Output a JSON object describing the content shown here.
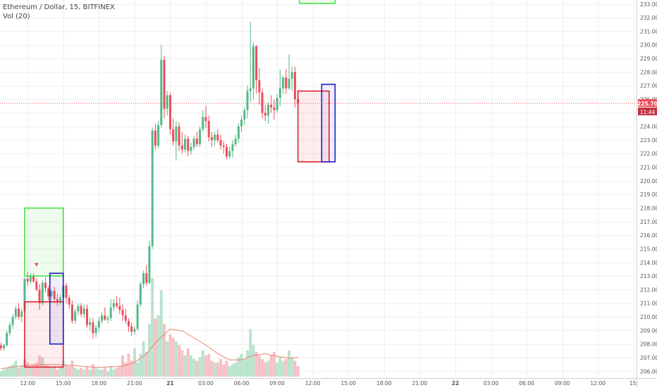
{
  "header": {
    "symbol_line": "Ethereum / Dollar, 15, BITFINEX",
    "volume_indicator": "Vol (20)"
  },
  "price_badge": {
    "price": "225.70",
    "countdown": "11:44"
  },
  "colors": {
    "up": "#53b987",
    "down": "#eb4d5c",
    "vol_up": "#b9e3cd",
    "vol_down": "#f5c1c6",
    "vol_ma": "#f08070",
    "price_line": "#eb4d5c",
    "grid": "#f0f0f0",
    "axis_text": "#555555",
    "zone_green": "#4cdf4c",
    "zone_red": "#e02030",
    "zone_blue": "#2020c0"
  },
  "chart_data": {
    "type": "candlestick",
    "title": "Ethereum / Dollar, 15, BITFINEX",
    "y_axis_ticks": [
      "206.00",
      "207.00",
      "208.00",
      "209.00",
      "210.00",
      "211.00",
      "212.00",
      "213.00",
      "214.00",
      "215.00",
      "216.00",
      "217.00",
      "218.00",
      "219.00",
      "220.00",
      "221.00",
      "222.00",
      "223.00",
      "224.00",
      "225.00",
      "226.00",
      "227.00",
      "228.00",
      "229.00",
      "230.00",
      "231.00",
      "232.00",
      "233.00"
    ],
    "ylim": [
      205.6,
      233.3
    ],
    "x_axis_ticks": [
      {
        "label": "12:00",
        "t": 0
      },
      {
        "label": "15:00",
        "t": 12
      },
      {
        "label": "18:00",
        "t": 24
      },
      {
        "label": "21:00",
        "t": 36
      },
      {
        "label": "21",
        "t": 48,
        "bold": true
      },
      {
        "label": "03:00",
        "t": 60
      },
      {
        "label": "06:00",
        "t": 72
      },
      {
        "label": "09:00",
        "t": 84
      },
      {
        "label": "12:00",
        "t": 96
      },
      {
        "label": "15:00",
        "t": 108
      },
      {
        "label": "18:00",
        "t": 120
      },
      {
        "label": "21:00",
        "t": 132
      },
      {
        "label": "22",
        "t": 144,
        "bold": true
      },
      {
        "label": "03:00",
        "t": 156
      },
      {
        "label": "06:00",
        "t": 168
      },
      {
        "label": "09:00",
        "t": 180
      },
      {
        "label": "12:00",
        "t": 192
      },
      {
        "label": "15:",
        "t": 204
      }
    ],
    "xlim": [
      -9.3,
      205.0
    ],
    "candles": [
      [
        -9,
        207.9,
        208.1,
        207.5,
        207.7
      ],
      [
        -8,
        207.7,
        208.0,
        207.5,
        207.9
      ],
      [
        -7,
        207.9,
        209.0,
        207.8,
        208.8
      ],
      [
        -6,
        208.8,
        209.6,
        208.6,
        209.4
      ],
      [
        -5,
        209.4,
        210.2,
        209.1,
        210.0
      ],
      [
        -4,
        210.0,
        210.8,
        209.8,
        210.6
      ],
      [
        -3,
        210.6,
        211.0,
        209.8,
        210.0
      ],
      [
        -2,
        210.0,
        210.6,
        209.6,
        210.4
      ],
      [
        -1,
        210.4,
        212.9,
        210.3,
        212.8
      ],
      [
        0,
        212.8,
        213.3,
        212.3,
        212.6
      ],
      [
        1,
        212.6,
        213.2,
        212.4,
        213.0
      ],
      [
        2,
        213.0,
        213.2,
        212.5,
        212.6
      ],
      [
        3,
        212.6,
        212.8,
        211.9,
        212.0
      ],
      [
        4,
        212.0,
        212.4,
        210.5,
        211.0
      ],
      [
        5,
        211.0,
        212.7,
        210.8,
        212.5
      ],
      [
        6,
        212.5,
        212.9,
        211.8,
        212.1
      ],
      [
        7,
        212.1,
        212.3,
        211.2,
        211.5
      ],
      [
        8,
        211.5,
        212.0,
        211.1,
        211.9
      ],
      [
        9,
        211.9,
        212.2,
        211.0,
        211.3
      ],
      [
        10,
        211.3,
        211.7,
        210.8,
        211.1
      ],
      [
        11,
        211.1,
        211.6,
        210.9,
        211.4
      ],
      [
        12,
        211.4,
        212.9,
        211.2,
        212.3
      ],
      [
        13,
        212.3,
        212.5,
        211.0,
        211.4
      ],
      [
        14,
        211.4,
        211.6,
        210.6,
        210.9
      ],
      [
        15,
        210.9,
        211.2,
        209.5,
        209.7
      ],
      [
        16,
        209.7,
        210.6,
        209.5,
        210.4
      ],
      [
        17,
        210.4,
        211.0,
        210.1,
        210.8
      ],
      [
        18,
        210.8,
        211.0,
        210.0,
        210.2
      ],
      [
        19,
        210.2,
        210.9,
        209.9,
        210.6
      ],
      [
        20,
        210.6,
        210.9,
        209.2,
        209.4
      ],
      [
        21,
        209.4,
        209.9,
        209.0,
        209.6
      ],
      [
        22,
        209.6,
        209.9,
        208.4,
        208.8
      ],
      [
        23,
        208.8,
        209.4,
        208.5,
        209.2
      ],
      [
        24,
        209.2,
        210.0,
        208.9,
        209.7
      ],
      [
        25,
        209.7,
        210.3,
        209.5,
        210.1
      ],
      [
        26,
        210.1,
        210.7,
        209.7,
        209.8
      ],
      [
        27,
        209.8,
        210.1,
        209.5,
        209.9
      ],
      [
        28,
        209.9,
        211.3,
        209.7,
        210.7
      ],
      [
        29,
        210.7,
        211.3,
        210.4,
        211.0
      ],
      [
        30,
        211.0,
        211.5,
        210.6,
        210.8
      ],
      [
        31,
        210.8,
        211.4,
        210.2,
        210.5
      ],
      [
        32,
        210.5,
        210.9,
        209.7,
        210.1
      ],
      [
        33,
        210.1,
        210.6,
        209.5,
        209.7
      ],
      [
        34,
        209.7,
        209.9,
        208.9,
        209.3
      ],
      [
        35,
        209.3,
        209.6,
        208.6,
        208.9
      ],
      [
        36,
        208.9,
        209.3,
        208.7,
        209.1
      ],
      [
        37,
        209.1,
        211.2,
        209.0,
        210.9
      ],
      [
        38,
        210.9,
        212.6,
        210.7,
        212.4
      ],
      [
        39,
        212.4,
        213.4,
        212.1,
        213.2
      ],
      [
        40,
        213.2,
        213.8,
        212.3,
        212.5
      ],
      [
        41,
        212.5,
        215.6,
        212.4,
        215.2
      ],
      [
        42,
        215.2,
        223.9,
        215.0,
        223.7
      ],
      [
        43,
        223.7,
        224.2,
        222.3,
        222.6
      ],
      [
        44,
        222.6,
        224.4,
        222.4,
        224.1
      ],
      [
        45,
        224.1,
        230.0,
        223.9,
        228.9
      ],
      [
        46,
        228.9,
        229.2,
        224.6,
        225.3
      ],
      [
        47,
        225.3,
        226.6,
        224.8,
        226.3
      ],
      [
        48,
        226.3,
        226.5,
        223.4,
        223.8
      ],
      [
        49,
        223.8,
        224.6,
        222.6,
        222.9
      ],
      [
        50,
        222.9,
        224.4,
        221.5,
        224.0
      ],
      [
        51,
        224.0,
        224.3,
        222.2,
        222.6
      ],
      [
        52,
        222.6,
        223.6,
        222.0,
        222.3
      ],
      [
        53,
        222.3,
        223.4,
        222.1,
        223.1
      ],
      [
        54,
        223.1,
        223.3,
        221.8,
        222.2
      ],
      [
        55,
        222.2,
        222.8,
        221.9,
        222.5
      ],
      [
        56,
        222.5,
        223.3,
        222.3,
        223.1
      ],
      [
        57,
        223.1,
        223.6,
        222.5,
        222.7
      ],
      [
        58,
        222.7,
        224.0,
        222.5,
        223.8
      ],
      [
        59,
        223.8,
        225.2,
        223.6,
        224.7
      ],
      [
        60,
        224.7,
        225.5,
        223.9,
        224.4
      ],
      [
        61,
        224.4,
        224.8,
        222.9,
        223.2
      ],
      [
        62,
        223.2,
        223.6,
        222.5,
        223.0
      ],
      [
        63,
        223.0,
        223.6,
        222.6,
        223.4
      ],
      [
        64,
        223.4,
        223.8,
        222.8,
        223.0
      ],
      [
        65,
        223.0,
        223.4,
        222.3,
        222.6
      ],
      [
        66,
        222.6,
        222.9,
        222.0,
        222.5
      ],
      [
        67,
        222.5,
        222.7,
        221.6,
        221.8
      ],
      [
        68,
        221.8,
        222.5,
        221.6,
        222.2
      ],
      [
        69,
        222.2,
        223.0,
        221.7,
        222.7
      ],
      [
        70,
        222.7,
        223.4,
        222.5,
        223.1
      ],
      [
        71,
        223.1,
        224.2,
        222.8,
        224.0
      ],
      [
        72,
        224.0,
        224.8,
        223.6,
        224.5
      ],
      [
        73,
        224.5,
        225.4,
        224.1,
        225.2
      ],
      [
        74,
        225.2,
        227.0,
        224.6,
        226.6
      ],
      [
        75,
        226.6,
        231.7,
        225.8,
        226.8
      ],
      [
        76,
        226.8,
        230.2,
        226.0,
        229.9
      ],
      [
        77,
        229.9,
        230.0,
        226.4,
        227.4
      ],
      [
        78,
        227.4,
        228.3,
        225.6,
        226.5
      ],
      [
        79,
        226.5,
        226.8,
        224.6,
        225.0
      ],
      [
        80,
        225.0,
        225.6,
        224.4,
        224.8
      ],
      [
        81,
        224.8,
        225.8,
        224.2,
        225.6
      ],
      [
        82,
        225.6,
        226.3,
        225.0,
        225.4
      ],
      [
        83,
        225.4,
        226.0,
        224.5,
        225.2
      ],
      [
        84,
        225.2,
        226.4,
        225.0,
        226.1
      ],
      [
        85,
        226.1,
        228.2,
        225.5,
        226.8
      ],
      [
        86,
        226.8,
        227.7,
        226.4,
        227.6
      ],
      [
        87,
        227.6,
        228.2,
        226.4,
        226.8
      ],
      [
        88,
        226.8,
        229.3,
        226.7,
        227.5
      ],
      [
        89,
        227.5,
        228.4,
        226.6,
        228.0
      ],
      [
        90,
        228.0,
        228.4,
        225.4,
        226.0
      ],
      [
        91,
        226.0,
        226.7,
        225.3,
        225.7
      ]
    ],
    "volumes": [
      [
        -9,
        0.3,
        "u"
      ],
      [
        -8,
        0.4,
        "u"
      ],
      [
        -7,
        0.5,
        "u"
      ],
      [
        -6,
        0.6,
        "u"
      ],
      [
        -5,
        0.7,
        "u"
      ],
      [
        -4,
        0.9,
        "u"
      ],
      [
        -3,
        0.5,
        "d"
      ],
      [
        -2,
        0.6,
        "u"
      ],
      [
        -1,
        1.0,
        "u"
      ],
      [
        0,
        0.8,
        "d"
      ],
      [
        1,
        0.6,
        "u"
      ],
      [
        2,
        0.7,
        "d"
      ],
      [
        3,
        0.8,
        "d"
      ],
      [
        4,
        1.2,
        "d"
      ],
      [
        5,
        1.1,
        "u"
      ],
      [
        6,
        0.7,
        "d"
      ],
      [
        7,
        0.6,
        "d"
      ],
      [
        8,
        0.5,
        "u"
      ],
      [
        9,
        0.6,
        "d"
      ],
      [
        10,
        0.4,
        "d"
      ],
      [
        11,
        0.5,
        "u"
      ],
      [
        12,
        0.9,
        "u"
      ],
      [
        13,
        0.7,
        "d"
      ],
      [
        14,
        0.6,
        "d"
      ],
      [
        15,
        0.9,
        "d"
      ],
      [
        16,
        0.5,
        "u"
      ],
      [
        17,
        0.4,
        "u"
      ],
      [
        18,
        0.5,
        "d"
      ],
      [
        19,
        0.4,
        "u"
      ],
      [
        20,
        0.6,
        "d"
      ],
      [
        21,
        0.4,
        "u"
      ],
      [
        22,
        0.7,
        "d"
      ],
      [
        23,
        0.5,
        "u"
      ],
      [
        24,
        0.4,
        "u"
      ],
      [
        25,
        0.4,
        "u"
      ],
      [
        26,
        0.5,
        "d"
      ],
      [
        27,
        0.3,
        "u"
      ],
      [
        28,
        0.6,
        "u"
      ],
      [
        29,
        0.4,
        "u"
      ],
      [
        30,
        0.5,
        "d"
      ],
      [
        31,
        0.6,
        "d"
      ],
      [
        32,
        1.2,
        "d"
      ],
      [
        33,
        0.8,
        "d"
      ],
      [
        34,
        1.3,
        "d"
      ],
      [
        35,
        0.9,
        "d"
      ],
      [
        36,
        1.6,
        "u"
      ],
      [
        37,
        0.8,
        "u"
      ],
      [
        38,
        1.3,
        "u"
      ],
      [
        39,
        2.0,
        "u"
      ],
      [
        40,
        1.4,
        "d"
      ],
      [
        41,
        3.0,
        "u"
      ],
      [
        42,
        5.6,
        "u"
      ],
      [
        43,
        3.3,
        "d"
      ],
      [
        44,
        3.5,
        "u"
      ],
      [
        45,
        4.9,
        "u"
      ],
      [
        46,
        3.0,
        "d"
      ],
      [
        47,
        2.0,
        "u"
      ],
      [
        48,
        2.4,
        "d"
      ],
      [
        49,
        2.2,
        "d"
      ],
      [
        50,
        2.0,
        "u"
      ],
      [
        51,
        1.8,
        "d"
      ],
      [
        52,
        1.5,
        "d"
      ],
      [
        53,
        1.2,
        "u"
      ],
      [
        54,
        1.6,
        "d"
      ],
      [
        55,
        1.2,
        "u"
      ],
      [
        56,
        1.0,
        "u"
      ],
      [
        57,
        0.9,
        "d"
      ],
      [
        58,
        1.1,
        "u"
      ],
      [
        59,
        1.5,
        "u"
      ],
      [
        60,
        1.2,
        "d"
      ],
      [
        61,
        1.3,
        "d"
      ],
      [
        62,
        0.9,
        "d"
      ],
      [
        63,
        0.8,
        "u"
      ],
      [
        64,
        0.8,
        "d"
      ],
      [
        65,
        1.0,
        "d"
      ],
      [
        66,
        0.7,
        "d"
      ],
      [
        67,
        0.9,
        "d"
      ],
      [
        68,
        0.6,
        "u"
      ],
      [
        69,
        0.7,
        "u"
      ],
      [
        70,
        0.8,
        "u"
      ],
      [
        71,
        1.1,
        "u"
      ],
      [
        72,
        1.3,
        "u"
      ],
      [
        73,
        1.0,
        "u"
      ],
      [
        74,
        1.5,
        "u"
      ],
      [
        75,
        2.7,
        "u"
      ],
      [
        76,
        1.8,
        "u"
      ],
      [
        77,
        1.4,
        "d"
      ],
      [
        78,
        1.2,
        "d"
      ],
      [
        79,
        1.0,
        "d"
      ],
      [
        80,
        0.8,
        "d"
      ],
      [
        81,
        0.9,
        "u"
      ],
      [
        82,
        1.2,
        "d"
      ],
      [
        83,
        1.4,
        "d"
      ],
      [
        84,
        0.8,
        "u"
      ],
      [
        85,
        1.1,
        "u"
      ],
      [
        86,
        0.9,
        "u"
      ],
      [
        87,
        1.0,
        "d"
      ],
      [
        88,
        1.5,
        "u"
      ],
      [
        89,
        1.1,
        "u"
      ],
      [
        90,
        0.9,
        "d"
      ],
      [
        91,
        0.6,
        "d"
      ]
    ],
    "volume_ma": [
      [
        -9,
        0.45
      ],
      [
        0,
        0.65
      ],
      [
        8,
        0.7
      ],
      [
        16,
        0.62
      ],
      [
        24,
        0.52
      ],
      [
        32,
        0.6
      ],
      [
        36,
        0.8
      ],
      [
        40,
        1.3
      ],
      [
        44,
        2.1
      ],
      [
        48,
        2.7
      ],
      [
        52,
        2.6
      ],
      [
        56,
        2.2
      ],
      [
        60,
        1.8
      ],
      [
        64,
        1.3
      ],
      [
        68,
        0.95
      ],
      [
        72,
        0.95
      ],
      [
        76,
        1.2
      ],
      [
        80,
        1.3
      ],
      [
        84,
        1.15
      ],
      [
        88,
        1.05
      ],
      [
        91,
        1.1
      ]
    ],
    "zones": [
      {
        "name": "green-zone-left",
        "kind": "green",
        "t1": -1,
        "t2": 12,
        "p1": 213.0,
        "p2": 218.0
      },
      {
        "name": "red-zone-left",
        "kind": "red",
        "t1": -1,
        "t2": 12,
        "p1": 206.3,
        "p2": 211.1
      },
      {
        "name": "blue-zone-left",
        "kind": "blue",
        "t1": 7.5,
        "t2": 12,
        "p1": 208.0,
        "p2": 213.2
      },
      {
        "name": "red-zone-right",
        "kind": "red",
        "t1": 91,
        "t2": 101.5,
        "p1": 221.4,
        "p2": 226.6
      },
      {
        "name": "blue-zone-right",
        "kind": "blue",
        "t1": 99,
        "t2": 103.5,
        "p1": 221.4,
        "p2": 227.1
      },
      {
        "name": "green-zone-top",
        "kind": "green",
        "t1": 91.5,
        "t2": 103.5,
        "p1": 233.05,
        "p2": 234.5
      }
    ],
    "marker": {
      "t": 3,
      "p": 213.8
    },
    "current_price": 225.7
  }
}
